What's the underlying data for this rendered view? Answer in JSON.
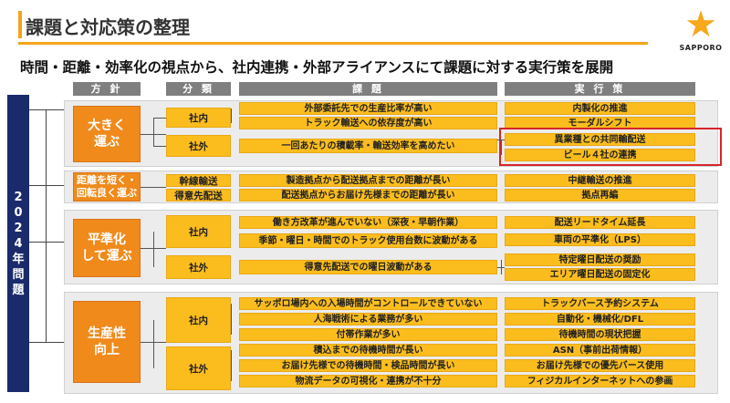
{
  "title": "課題と対応策の整理",
  "logo": {
    "text": "SAPPORO",
    "icon": "star-icon",
    "color": "#f7a81b"
  },
  "subtitle": "時間・距離・効率化の視点から、社内連携・外部アライアンスにて課題に対する実行策を展開",
  "headers": {
    "policy": "方 針",
    "category": "分 類",
    "problem": "課 題",
    "measure": "実 行 策"
  },
  "vertical_label": [
    "2",
    "0",
    "2",
    "4",
    "年",
    "問",
    "題"
  ],
  "colors": {
    "orange": "#f08a1b",
    "yellow": "#fbbd1e",
    "navy": "#1a2a6b",
    "highlight": "#d6252a"
  },
  "groups": [
    {
      "policy": "大きく 運ぶ",
      "categories": [
        "社内",
        "社外"
      ],
      "problems": [
        "外部委託先での生産比率が高い",
        "トラック輸送への依存度が高い",
        "一回あたりの積載率・輸送効率を高めたい"
      ],
      "measures": [
        "内製化の推進",
        "モーダルシフト",
        "異業種との共同輸配送",
        "ビール４社の連携"
      ]
    },
    {
      "policy": "距離を短く・ 回転良く運ぶ",
      "categories": [
        "幹線輸送",
        "得意先配送"
      ],
      "problems": [
        "製造拠点から配送拠点までの距離が長い",
        "配送拠点からお届け先様までの距離が長い"
      ],
      "measures": [
        "中継輸送の推進",
        "拠点再編"
      ]
    },
    {
      "policy": "平準化 して運ぶ",
      "categories": [
        "社内",
        "社外"
      ],
      "problems": [
        "働き方改革が進んでいない（深夜・早朝作業）",
        "季節・曜日・時間でのトラック使用台数に波動がある",
        "得意先配送での曜日波動がある"
      ],
      "measures": [
        "配送リードタイム延長",
        "車両の平準化（LPS）",
        "特定曜日配送の奨励",
        "エリア曜日配送の固定化"
      ]
    },
    {
      "policy": "生産性 向上",
      "categories": [
        "社内",
        "社外"
      ],
      "problems": [
        "サッポロ場内への入場時間がコントロールできていない",
        "人海戦術による業務が多い",
        "付帯作業が多い",
        "積込までの待機時間が長い",
        "お届け先様での待機時間・検品時間が長い",
        "物流データの可視化・連携が不十分"
      ],
      "measures": [
        "トラックバース予約システム",
        "自動化・機械化/DFL",
        "待機時間の現状把握",
        "ASN（事前出荷情報）",
        "お届け先様での優先バース使用",
        "フィジカルインターネットへの参画"
      ]
    }
  ]
}
